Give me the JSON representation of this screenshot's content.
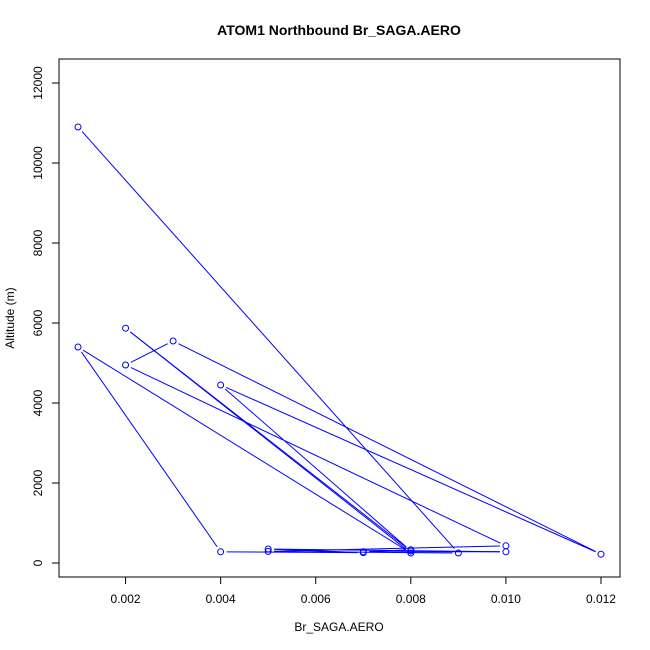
{
  "chart_data": {
    "type": "line",
    "title": "ATOM1 Northbound Br_SAGA.AERO",
    "xlabel": "Br_SAGA.AERO",
    "ylabel": "Altitude (m)",
    "xlim": [
      0.0006,
      0.0124
    ],
    "ylim": [
      -350,
      12600
    ],
    "x_ticks": [
      0.002,
      0.004,
      0.006,
      0.008,
      0.01,
      0.012
    ],
    "x_tick_labels": [
      "0.002",
      "0.004",
      "0.006",
      "0.008",
      "0.010",
      "0.012"
    ],
    "y_ticks": [
      0,
      2000,
      4000,
      6000,
      8000,
      10000,
      12000
    ],
    "y_tick_labels": [
      "0",
      "2000",
      "4000",
      "6000",
      "8000",
      "10000",
      "12000"
    ],
    "grid": false,
    "legend": "none",
    "series": [
      {
        "color": "#0000ff",
        "marker": "open-circle",
        "points": [
          {
            "x": 0.001,
            "y": 10900
          },
          {
            "x": 0.009,
            "y": 250
          },
          {
            "x": 0.005,
            "y": 290
          },
          {
            "x": 0.01,
            "y": 430
          },
          {
            "x": 0.002,
            "y": 4950
          },
          {
            "x": 0.003,
            "y": 5550
          },
          {
            "x": 0.012,
            "y": 220
          },
          {
            "x": 0.004,
            "y": 4450
          },
          {
            "x": 0.008,
            "y": 300
          },
          {
            "x": 0.002,
            "y": 5870
          },
          {
            "x": 0.008,
            "y": 250
          },
          {
            "x": 0.001,
            "y": 5400
          },
          {
            "x": 0.004,
            "y": 280
          },
          {
            "x": 0.007,
            "y": 260
          },
          {
            "x": 0.005,
            "y": 350
          },
          {
            "x": 0.01,
            "y": 280
          },
          {
            "x": 0.007,
            "y": 280
          },
          {
            "x": 0.008,
            "y": 330
          }
        ]
      }
    ]
  }
}
